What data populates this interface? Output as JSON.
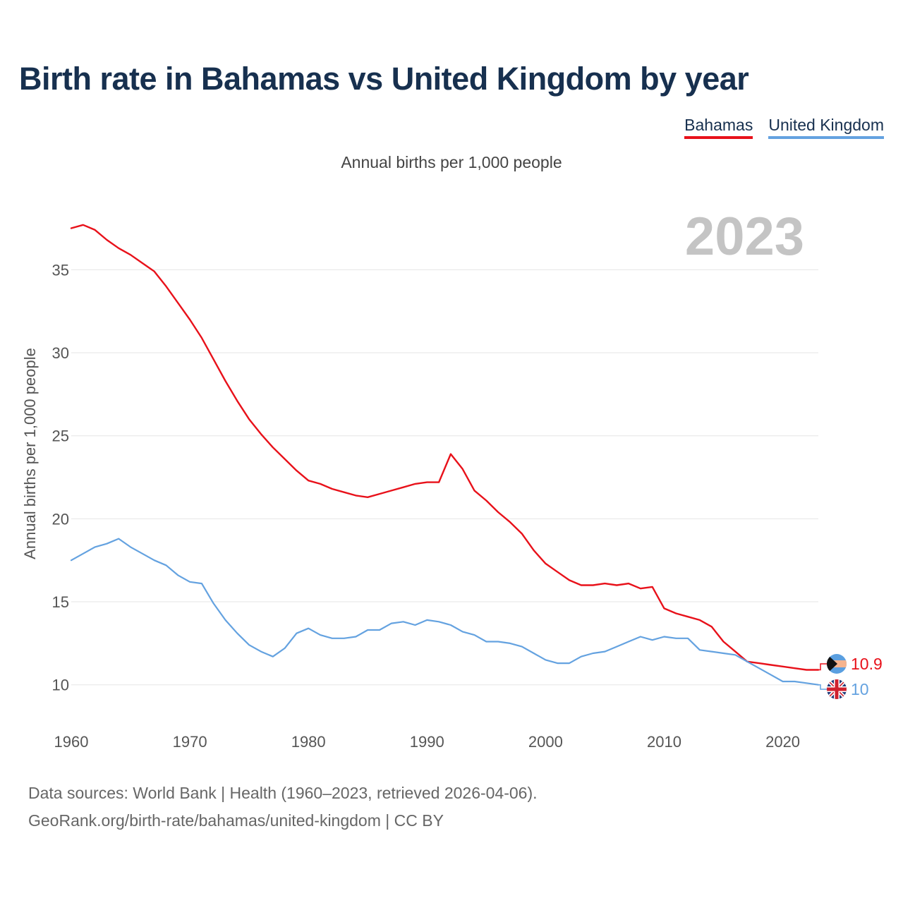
{
  "title": "Birth rate in Bahamas vs United Kingdom by year",
  "subtitle": "Annual births per 1,000 people",
  "footer": {
    "line1": "Data sources: World Bank | Health (1960–2023, retrieved 2026-04-06).",
    "line2": "GeoRank.org/birth-rate/bahamas/united-kingdom | CC BY"
  },
  "chart_data": {
    "type": "line",
    "title": "Birth rate in Bahamas vs United Kingdom by year",
    "ylabel": "Annual births per 1,000 people",
    "xlabel": "",
    "year_label": "2023",
    "xlim": [
      1960,
      2023
    ],
    "ylim": [
      8.5,
      38.5
    ],
    "x_ticks": [
      1960,
      1970,
      1980,
      1990,
      2000,
      2010,
      2020
    ],
    "y_ticks": [
      10,
      15,
      20,
      25,
      30,
      35
    ],
    "grid": true,
    "legend_position": "top-right",
    "x": [
      1960,
      1961,
      1962,
      1963,
      1964,
      1965,
      1966,
      1967,
      1968,
      1969,
      1970,
      1971,
      1972,
      1973,
      1974,
      1975,
      1976,
      1977,
      1978,
      1979,
      1980,
      1981,
      1982,
      1983,
      1984,
      1985,
      1986,
      1987,
      1988,
      1989,
      1990,
      1991,
      1992,
      1993,
      1994,
      1995,
      1996,
      1997,
      1998,
      1999,
      2000,
      2001,
      2002,
      2003,
      2004,
      2005,
      2006,
      2007,
      2008,
      2009,
      2010,
      2011,
      2012,
      2013,
      2014,
      2015,
      2016,
      2017,
      2018,
      2019,
      2020,
      2021,
      2022,
      2023
    ],
    "series": [
      {
        "name": "Bahamas",
        "color": "#e8111a",
        "end_label": "10.9",
        "values": [
          37.5,
          37.7,
          37.4,
          36.8,
          36.3,
          35.9,
          35.4,
          34.9,
          34.0,
          33.0,
          32.0,
          30.9,
          29.6,
          28.3,
          27.1,
          26.0,
          25.1,
          24.3,
          23.6,
          22.9,
          22.3,
          22.1,
          21.8,
          21.6,
          21.4,
          21.3,
          21.5,
          21.7,
          21.9,
          22.1,
          22.2,
          22.2,
          23.9,
          23.0,
          21.7,
          21.1,
          20.4,
          19.8,
          19.1,
          18.1,
          17.3,
          16.8,
          16.3,
          16.0,
          16.0,
          16.1,
          16.0,
          16.1,
          15.8,
          15.9,
          14.6,
          14.3,
          14.1,
          13.9,
          13.5,
          12.6,
          12.0,
          11.4,
          11.3,
          11.2,
          11.1,
          11.0,
          10.9,
          10.9
        ]
      },
      {
        "name": "United Kingdom",
        "color": "#64a2e0",
        "end_label": "10",
        "values": [
          17.5,
          17.9,
          18.3,
          18.5,
          18.8,
          18.3,
          17.9,
          17.5,
          17.2,
          16.6,
          16.2,
          16.1,
          14.9,
          13.9,
          13.1,
          12.4,
          12.0,
          11.7,
          12.2,
          13.1,
          13.4,
          13.0,
          12.8,
          12.8,
          12.9,
          13.3,
          13.3,
          13.7,
          13.8,
          13.6,
          13.9,
          13.8,
          13.6,
          13.2,
          13.0,
          12.6,
          12.6,
          12.5,
          12.3,
          11.9,
          11.5,
          11.3,
          11.3,
          11.7,
          11.9,
          12.0,
          12.3,
          12.6,
          12.9,
          12.7,
          12.9,
          12.8,
          12.8,
          12.1,
          12.0,
          11.9,
          11.8,
          11.4,
          11.0,
          10.6,
          10.2,
          10.2,
          10.1,
          10.0
        ]
      }
    ]
  }
}
